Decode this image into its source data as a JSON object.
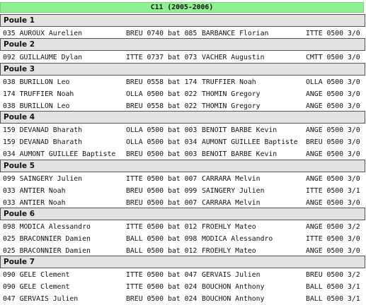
{
  "title": "C11 (2005-2006)",
  "poules": [
    {
      "label": "Poule 1",
      "matches": [
        [
          "035 AUROUX Aurelien",
          "BREU 0740 bat 085",
          "BARBANCE Florian",
          "ITTE 0500 3/0"
        ]
      ]
    },
    {
      "label": "Poule 2",
      "matches": [
        [
          "092 GUILLAUME Dylan",
          "ITTE 0737 bat 073",
          "VACHER Augustin",
          "CMTT 0500 3/0"
        ]
      ]
    },
    {
      "label": "Poule 3",
      "matches": [
        [
          "038 BURILLON Leo",
          "BREU 0558 bat 174",
          "TRUFFIER Noah",
          "OLLA 0500 3/0"
        ],
        [
          "174 TRUFFIER Noah",
          "OLLA 0500 bat 022",
          "THOMIN Gregory",
          "ANGE 0500 3/0"
        ],
        [
          "038 BURILLON Leo",
          "BREU 0558 bat 022",
          "THOMIN Gregory",
          "ANGE 0500 3/0"
        ]
      ]
    },
    {
      "label": "Poule 4",
      "matches": [
        [
          "159 DEVANAD Bharath",
          "OLLA 0500 bat 003",
          "BENOIT BARBE Kevin",
          "ANGE 0500 3/0"
        ],
        [
          "159 DEVANAD Bharath",
          "OLLA 0500 bat 034",
          "AUMONT GUILLEE Baptiste",
          "BREU 0500 3/0"
        ],
        [
          "034 AUMONT GUILLEE Baptiste",
          "BREU 0500 bat 003",
          "BENOIT BARBE Kevin",
          "ANGE 0500 3/0"
        ]
      ]
    },
    {
      "label": "Poule 5",
      "matches": [
        [
          "099 SAINGERY Julien",
          "ITTE 0500 bat 007",
          "CARRARA Melvin",
          "ANGE 0500 3/0"
        ],
        [
          "033 ANTIER Noah",
          "BREU 0500 bat 099",
          "SAINGERY Julien",
          "ITTE 0500 3/1"
        ],
        [
          "033 ANTIER Noah",
          "BREU 0500 bat 007",
          "CARRARA Melvin",
          "ANGE 0500 3/0"
        ]
      ]
    },
    {
      "label": "Poule 6",
      "matches": [
        [
          "098 MODICA Alessandro",
          "ITTE 0500 bat 012",
          "FROEHLY Mateo",
          "ANGE 0500 3/2"
        ],
        [
          "025 BRACONNIER Damien",
          "BALL 0500 bat 098",
          "MODICA Alessandro",
          "ITTE 0500 3/0"
        ],
        [
          "025 BRACONNIER Damien",
          "BALL 0500 bat 012",
          "FROEHLY Mateo",
          "ANGE 0500 3/0"
        ]
      ]
    },
    {
      "label": "Poule 7",
      "matches": [
        [
          "090 GELE Clement",
          "ITTE 0500 bat 047",
          "GERVAIS Julien",
          "BREU 0500 3/2"
        ],
        [
          "090 GELE Clement",
          "ITTE 0500 bat 024",
          "BOUCHON Anthony",
          "BALL 0500 3/1"
        ],
        [
          "047 GERVAIS Julien",
          "BREU 0500 bat 024",
          "BOUCHON Anthony",
          "BALL 0500 3/1"
        ]
      ]
    }
  ]
}
